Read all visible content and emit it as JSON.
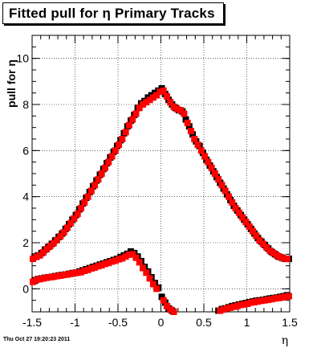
{
  "title": "Fitted pull for η  Primary Tracks",
  "footer": "Thu Oct 27 19:20:23 2011",
  "chart_data": {
    "type": "scatter",
    "title": "Fitted pull for η  Primary Tracks",
    "xlabel": "η",
    "ylabel": "pull for η",
    "xlim": [
      -1.5,
      1.5
    ],
    "ylim": [
      -1.0,
      11.0
    ],
    "x_ticks": [
      "-1.5",
      "-1",
      "-0.5",
      "0",
      "0.5",
      "1",
      "1.5"
    ],
    "y_ticks": [
      "0",
      "2",
      "4",
      "6",
      "8",
      "10"
    ],
    "grid": true,
    "series": [
      {
        "color": "#000000",
        "marker": "square",
        "points": [
          [
            -1.47,
            1.4
          ],
          [
            -1.43,
            1.45
          ],
          [
            -1.39,
            1.55
          ],
          [
            -1.35,
            1.7
          ],
          [
            -1.31,
            1.82
          ],
          [
            -1.27,
            1.95
          ],
          [
            -1.23,
            2.1
          ],
          [
            -1.19,
            2.25
          ],
          [
            -1.15,
            2.4
          ],
          [
            -1.11,
            2.6
          ],
          [
            -1.07,
            2.8
          ],
          [
            -1.03,
            3.0
          ],
          [
            -0.99,
            3.2
          ],
          [
            -0.95,
            3.45
          ],
          [
            -0.91,
            3.7
          ],
          [
            -0.87,
            3.95
          ],
          [
            -0.83,
            4.2
          ],
          [
            -0.79,
            4.45
          ],
          [
            -0.75,
            4.7
          ],
          [
            -0.71,
            4.95
          ],
          [
            -0.67,
            5.2
          ],
          [
            -0.63,
            5.45
          ],
          [
            -0.59,
            5.7
          ],
          [
            -0.55,
            5.95
          ],
          [
            -0.51,
            6.2
          ],
          [
            -0.47,
            6.45
          ],
          [
            -0.43,
            6.75
          ],
          [
            -0.39,
            7.05
          ],
          [
            -0.35,
            7.3
          ],
          [
            -0.31,
            7.55
          ],
          [
            -0.27,
            7.85
          ],
          [
            -0.23,
            8.05
          ],
          [
            -0.19,
            8.15
          ],
          [
            -0.15,
            8.3
          ],
          [
            -0.11,
            8.4
          ],
          [
            -0.07,
            8.5
          ],
          [
            -0.03,
            8.6
          ],
          [
            0.01,
            8.7
          ],
          [
            0.05,
            8.45
          ],
          [
            0.09,
            8.2
          ],
          [
            0.13,
            8.0
          ],
          [
            0.17,
            7.85
          ],
          [
            0.21,
            7.75
          ],
          [
            0.25,
            7.7
          ],
          [
            0.29,
            7.35
          ],
          [
            0.33,
            7.05
          ],
          [
            0.37,
            6.7
          ],
          [
            0.41,
            6.4
          ],
          [
            0.45,
            6.2
          ],
          [
            0.49,
            5.9
          ],
          [
            0.53,
            5.6
          ],
          [
            0.57,
            5.35
          ],
          [
            0.61,
            5.1
          ],
          [
            0.65,
            4.85
          ],
          [
            0.69,
            4.6
          ],
          [
            0.73,
            4.35
          ],
          [
            0.77,
            4.1
          ],
          [
            0.81,
            3.85
          ],
          [
            0.85,
            3.6
          ],
          [
            0.89,
            3.4
          ],
          [
            0.93,
            3.2
          ],
          [
            0.97,
            3.0
          ],
          [
            1.01,
            2.8
          ],
          [
            1.05,
            2.6
          ],
          [
            1.09,
            2.4
          ],
          [
            1.13,
            2.2
          ],
          [
            1.17,
            2.05
          ],
          [
            1.21,
            1.9
          ],
          [
            1.25,
            1.75
          ],
          [
            1.29,
            1.6
          ],
          [
            1.33,
            1.5
          ],
          [
            1.37,
            1.4
          ],
          [
            1.41,
            1.35
          ],
          [
            1.45,
            1.3
          ],
          [
            1.49,
            1.3
          ],
          [
            -1.47,
            0.35
          ],
          [
            -1.43,
            0.42
          ],
          [
            -1.39,
            0.45
          ],
          [
            -1.35,
            0.48
          ],
          [
            -1.31,
            0.5
          ],
          [
            -1.27,
            0.52
          ],
          [
            -1.23,
            0.55
          ],
          [
            -1.19,
            0.58
          ],
          [
            -1.15,
            0.6
          ],
          [
            -1.11,
            0.62
          ],
          [
            -1.07,
            0.65
          ],
          [
            -1.03,
            0.68
          ],
          [
            -0.99,
            0.7
          ],
          [
            -0.95,
            0.75
          ],
          [
            -0.91,
            0.8
          ],
          [
            -0.87,
            0.85
          ],
          [
            -0.83,
            0.9
          ],
          [
            -0.79,
            0.95
          ],
          [
            -0.75,
            1.0
          ],
          [
            -0.71,
            1.05
          ],
          [
            -0.67,
            1.1
          ],
          [
            -0.63,
            1.15
          ],
          [
            -0.59,
            1.2
          ],
          [
            -0.55,
            1.25
          ],
          [
            -0.51,
            1.3
          ],
          [
            -0.47,
            1.38
          ],
          [
            -0.43,
            1.45
          ],
          [
            -0.39,
            1.52
          ],
          [
            -0.35,
            1.62
          ],
          [
            -0.31,
            1.55
          ],
          [
            -0.27,
            1.4
          ],
          [
            -0.23,
            1.2
          ],
          [
            -0.19,
            0.95
          ],
          [
            -0.15,
            0.75
          ],
          [
            -0.11,
            0.5
          ],
          [
            -0.07,
            0.25
          ],
          [
            -0.03,
            0.05
          ],
          [
            0.01,
            -0.35
          ],
          [
            0.05,
            -0.6
          ],
          [
            0.09,
            -0.85
          ],
          [
            0.13,
            -0.95
          ],
          [
            0.67,
            -0.95
          ],
          [
            0.71,
            -0.88
          ],
          [
            0.75,
            -0.85
          ],
          [
            0.79,
            -0.8
          ],
          [
            0.83,
            -0.75
          ],
          [
            0.87,
            -0.72
          ],
          [
            0.91,
            -0.68
          ],
          [
            0.95,
            -0.65
          ],
          [
            0.99,
            -0.62
          ],
          [
            1.03,
            -0.58
          ],
          [
            1.07,
            -0.55
          ],
          [
            1.11,
            -0.52
          ],
          [
            1.15,
            -0.5
          ],
          [
            1.19,
            -0.48
          ],
          [
            1.23,
            -0.45
          ],
          [
            1.27,
            -0.42
          ],
          [
            1.31,
            -0.4
          ],
          [
            1.35,
            -0.38
          ],
          [
            1.39,
            -0.35
          ],
          [
            1.43,
            -0.32
          ],
          [
            1.47,
            -0.28
          ]
        ]
      },
      {
        "color": "#ff0000",
        "marker": "square",
        "points": [
          [
            -1.49,
            1.3
          ],
          [
            -1.45,
            1.38
          ],
          [
            -1.41,
            1.45
          ],
          [
            -1.37,
            1.58
          ],
          [
            -1.33,
            1.72
          ],
          [
            -1.29,
            1.85
          ],
          [
            -1.25,
            1.98
          ],
          [
            -1.21,
            2.12
          ],
          [
            -1.17,
            2.28
          ],
          [
            -1.13,
            2.45
          ],
          [
            -1.09,
            2.65
          ],
          [
            -1.05,
            2.85
          ],
          [
            -1.01,
            3.05
          ],
          [
            -0.97,
            3.25
          ],
          [
            -0.93,
            3.5
          ],
          [
            -0.89,
            3.75
          ],
          [
            -0.85,
            4.0
          ],
          [
            -0.81,
            4.25
          ],
          [
            -0.77,
            4.5
          ],
          [
            -0.73,
            4.75
          ],
          [
            -0.69,
            5.0
          ],
          [
            -0.65,
            5.25
          ],
          [
            -0.61,
            5.5
          ],
          [
            -0.57,
            5.75
          ],
          [
            -0.53,
            6.0
          ],
          [
            -0.49,
            6.25
          ],
          [
            -0.45,
            6.5
          ],
          [
            -0.41,
            6.8
          ],
          [
            -0.37,
            7.1
          ],
          [
            -0.33,
            7.35
          ],
          [
            -0.29,
            7.6
          ],
          [
            -0.25,
            7.85
          ],
          [
            -0.21,
            8.0
          ],
          [
            -0.17,
            8.1
          ],
          [
            -0.13,
            8.2
          ],
          [
            -0.09,
            8.3
          ],
          [
            -0.05,
            8.4
          ],
          [
            -0.01,
            8.55
          ],
          [
            0.03,
            8.6
          ],
          [
            0.07,
            8.35
          ],
          [
            0.11,
            8.1
          ],
          [
            0.15,
            7.9
          ],
          [
            0.19,
            7.8
          ],
          [
            0.23,
            7.75
          ],
          [
            0.27,
            7.6
          ],
          [
            0.31,
            7.2
          ],
          [
            0.35,
            6.85
          ],
          [
            0.39,
            6.5
          ],
          [
            0.43,
            6.25
          ],
          [
            0.47,
            6.0
          ],
          [
            0.51,
            5.75
          ],
          [
            0.55,
            5.5
          ],
          [
            0.59,
            5.25
          ],
          [
            0.63,
            5.0
          ],
          [
            0.67,
            4.75
          ],
          [
            0.71,
            4.5
          ],
          [
            0.75,
            4.25
          ],
          [
            0.79,
            4.0
          ],
          [
            0.83,
            3.75
          ],
          [
            0.87,
            3.5
          ],
          [
            0.91,
            3.3
          ],
          [
            0.95,
            3.1
          ],
          [
            0.99,
            2.9
          ],
          [
            1.03,
            2.7
          ],
          [
            1.07,
            2.5
          ],
          [
            1.11,
            2.3
          ],
          [
            1.15,
            2.1
          ],
          [
            1.19,
            1.95
          ],
          [
            1.23,
            1.8
          ],
          [
            1.27,
            1.65
          ],
          [
            1.31,
            1.55
          ],
          [
            1.35,
            1.45
          ],
          [
            1.39,
            1.38
          ],
          [
            1.43,
            1.32
          ],
          [
            1.47,
            1.3
          ],
          [
            -1.49,
            0.3
          ],
          [
            -1.45,
            0.38
          ],
          [
            -1.41,
            0.42
          ],
          [
            -1.37,
            0.45
          ],
          [
            -1.33,
            0.48
          ],
          [
            -1.29,
            0.5
          ],
          [
            -1.25,
            0.52
          ],
          [
            -1.21,
            0.55
          ],
          [
            -1.17,
            0.57
          ],
          [
            -1.13,
            0.6
          ],
          [
            -1.09,
            0.62
          ],
          [
            -1.05,
            0.65
          ],
          [
            -1.01,
            0.68
          ],
          [
            -0.97,
            0.7
          ],
          [
            -0.93,
            0.72
          ],
          [
            -0.89,
            0.78
          ],
          [
            -0.85,
            0.82
          ],
          [
            -0.81,
            0.88
          ],
          [
            -0.77,
            0.92
          ],
          [
            -0.73,
            0.98
          ],
          [
            -0.69,
            1.02
          ],
          [
            -0.65,
            1.08
          ],
          [
            -0.61,
            1.12
          ],
          [
            -0.57,
            1.18
          ],
          [
            -0.53,
            1.22
          ],
          [
            -0.49,
            1.28
          ],
          [
            -0.45,
            1.32
          ],
          [
            -0.41,
            1.4
          ],
          [
            -0.37,
            1.48
          ],
          [
            -0.33,
            1.5
          ],
          [
            -0.29,
            1.35
          ],
          [
            -0.25,
            1.15
          ],
          [
            -0.21,
            0.9
          ],
          [
            -0.17,
            0.7
          ],
          [
            -0.13,
            0.45
          ],
          [
            -0.09,
            0.2
          ],
          [
            -0.05,
            0.0
          ],
          [
            0.03,
            -0.5
          ],
          [
            0.07,
            -0.75
          ],
          [
            0.11,
            -0.9
          ],
          [
            0.15,
            -1.0
          ],
          [
            0.69,
            -0.95
          ],
          [
            0.73,
            -0.9
          ],
          [
            0.77,
            -0.85
          ],
          [
            0.81,
            -0.82
          ],
          [
            0.85,
            -0.78
          ],
          [
            0.89,
            -0.75
          ],
          [
            0.93,
            -0.7
          ],
          [
            0.97,
            -0.68
          ],
          [
            1.01,
            -0.65
          ],
          [
            1.05,
            -0.6
          ],
          [
            1.09,
            -0.58
          ],
          [
            1.13,
            -0.55
          ],
          [
            1.17,
            -0.52
          ],
          [
            1.21,
            -0.5
          ],
          [
            1.25,
            -0.48
          ],
          [
            1.29,
            -0.45
          ],
          [
            1.33,
            -0.42
          ],
          [
            1.37,
            -0.4
          ],
          [
            1.41,
            -0.38
          ],
          [
            1.45,
            -0.35
          ],
          [
            1.49,
            -0.32
          ]
        ]
      }
    ]
  }
}
